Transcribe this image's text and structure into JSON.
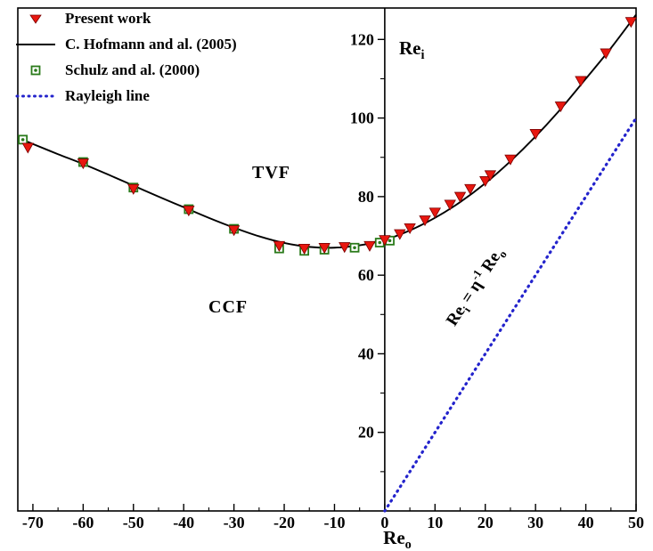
{
  "legend": {
    "items": [
      {
        "label": "Present work",
        "marker": "triangle-down",
        "color": "#e8170f"
      },
      {
        "label": "C. Hofmann and al. (2005)",
        "marker": "line",
        "color": "#000000"
      },
      {
        "label": "Schulz and al. (2000)",
        "marker": "square-center-dot",
        "color": "#2a7a1a"
      },
      {
        "label": "Rayleigh line",
        "marker": "dotted-line",
        "color": "#2323cc"
      }
    ]
  },
  "labels": {
    "region_tvf": "TVF",
    "region_ccf": "CCF",
    "y_axis_title": {
      "base": "Re",
      "sub": "i"
    },
    "x_axis_title": {
      "base": "Re",
      "sub": "o"
    },
    "rayleigh_eq": {
      "p1": "Re",
      "sub1": "i",
      "p2": " = η",
      "sup1": "-1",
      "p3": " Re",
      "sub2": "o"
    }
  },
  "chart_data": {
    "type": "line+scatter",
    "title": "",
    "xlabel": "Re_o",
    "ylabel": "Re_i",
    "xlim": [
      -73,
      50
    ],
    "ylim": [
      0,
      128
    ],
    "x_ticks_major": [
      -70,
      -60,
      -50,
      -40,
      -30,
      -20,
      -10,
      0,
      10,
      20,
      30,
      40,
      50
    ],
    "x_minor_step": 5,
    "y_ticks_major": [
      20,
      40,
      60,
      80,
      100,
      120
    ],
    "y_minor_step": 10,
    "grid": false,
    "legend_position": "top-left",
    "axis_color": "#000000",
    "series": [
      {
        "name": "Present work",
        "type": "scatter",
        "marker": "triangle-down",
        "color": "#e8170f",
        "edge": "#7a0000",
        "points": [
          [
            -71,
            92.5
          ],
          [
            -60,
            88.5
          ],
          [
            -50,
            82
          ],
          [
            -39,
            76.5
          ],
          [
            -30,
            71.5
          ],
          [
            -21,
            67.5
          ],
          [
            -16,
            66.8
          ],
          [
            -12,
            67
          ],
          [
            -8,
            67.2
          ],
          [
            -3,
            67.5
          ],
          [
            0,
            69
          ],
          [
            3,
            70.5
          ],
          [
            5,
            72
          ],
          [
            8,
            74
          ],
          [
            10,
            76
          ],
          [
            13,
            78
          ],
          [
            15,
            80
          ],
          [
            17,
            82
          ],
          [
            20,
            84
          ],
          [
            21,
            85.5
          ],
          [
            25,
            89.5
          ],
          [
            30,
            96
          ],
          [
            35,
            103
          ],
          [
            39,
            109.5
          ],
          [
            44,
            116.5
          ],
          [
            49,
            124.5
          ]
        ]
      },
      {
        "name": "C. Hofmann and al. (2005)",
        "type": "line",
        "style": "solid",
        "color": "#000000",
        "width": 1.9,
        "points": [
          [
            -73,
            95
          ],
          [
            -70,
            93.4
          ],
          [
            -65,
            90.8
          ],
          [
            -60,
            88.3
          ],
          [
            -55,
            85.6
          ],
          [
            -50,
            82.8
          ],
          [
            -45,
            80
          ],
          [
            -40,
            77.3
          ],
          [
            -35,
            74.6
          ],
          [
            -30,
            72.1
          ],
          [
            -25,
            69.9
          ],
          [
            -20,
            68.2
          ],
          [
            -15,
            67.2
          ],
          [
            -10,
            67
          ],
          [
            -5,
            67.6
          ],
          [
            0,
            69
          ],
          [
            5,
            71.4
          ],
          [
            10,
            74.6
          ],
          [
            15,
            78.6
          ],
          [
            20,
            83.4
          ],
          [
            25,
            89
          ],
          [
            30,
            95.3
          ],
          [
            35,
            102.3
          ],
          [
            40,
            110
          ],
          [
            45,
            117.8
          ],
          [
            50,
            126.3
          ]
        ]
      },
      {
        "name": "Schulz and al. (2000)",
        "type": "scatter",
        "marker": "square-center-dot",
        "color": "#2a7a1a",
        "points": [
          [
            -72,
            94.5
          ],
          [
            -60,
            88.8
          ],
          [
            -50,
            82.3
          ],
          [
            -39,
            76.8
          ],
          [
            -30,
            71.8
          ],
          [
            -21,
            66.8
          ],
          [
            -16,
            66.2
          ],
          [
            -12,
            66.5
          ],
          [
            -6,
            67
          ],
          [
            -1,
            68.3
          ],
          [
            1,
            68.8
          ]
        ]
      },
      {
        "name": "Rayleigh line",
        "type": "line",
        "style": "dotted",
        "color": "#2323cc",
        "width": 3.2,
        "points": [
          [
            0,
            0
          ],
          [
            50,
            100
          ]
        ]
      }
    ]
  }
}
